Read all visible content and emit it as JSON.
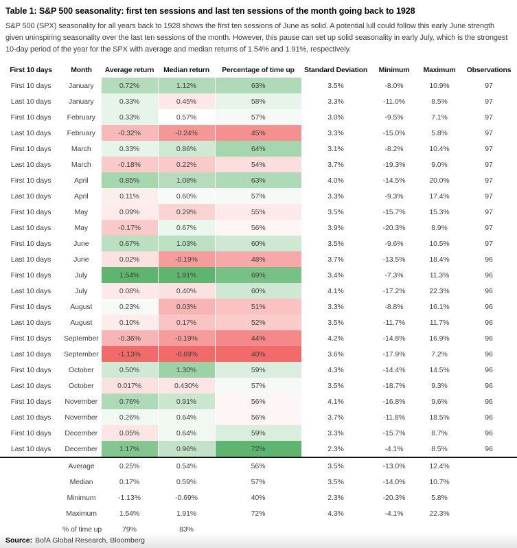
{
  "title": "Table 1: S&P 500 seasonality: first ten sessions and last ten sessions of the month going back to 1928",
  "subtitle": "S&P 500 (SPX) seasonality for all years back to 1928 shows the first ten sessions of June as solid. A potential lull could follow this early June strength given uninspiring seasonality over the last ten sessions of the month. However, this pause can set up solid seasonality in early July, which is the strongest 10-day period of the year for the SPX with average and median returns of 1.54% and 1.91%, respectively.",
  "source": {
    "label": "Source:",
    "text": "BofA Global Research, Bloomberg"
  },
  "chart_data": {
    "type": "table",
    "columns": [
      "First 10 days",
      "Month",
      "Average return",
      "Median return",
      "Percentage of time up",
      "Standard Deviation",
      "Minimum",
      "Maximum",
      "Observations"
    ],
    "rows": [
      [
        "First 10 days",
        "January",
        "0.72%",
        "1.12%",
        "63%",
        "3.5%",
        "-8.0%",
        "10.9%",
        "97"
      ],
      [
        "Last 10 days",
        "January",
        "0.33%",
        "0.45%",
        "58%",
        "3.3%",
        "-11.0%",
        "8.5%",
        "97"
      ],
      [
        "First 10 days",
        "February",
        "0.33%",
        "0.57%",
        "57%",
        "3.0%",
        "-9.5%",
        "7.1%",
        "97"
      ],
      [
        "Last 10 days",
        "February",
        "-0.32%",
        "-0.24%",
        "45%",
        "3.3%",
        "-15.0%",
        "5.8%",
        "97"
      ],
      [
        "First 10 days",
        "March",
        "0.33%",
        "0.86%",
        "64%",
        "3.1%",
        "-8.2%",
        "10.4%",
        "97"
      ],
      [
        "Last 10 days",
        "March",
        "-0.18%",
        "0.22%",
        "54%",
        "3.7%",
        "-19.3%",
        "9.0%",
        "97"
      ],
      [
        "First 10 days",
        "April",
        "0.85%",
        "1.08%",
        "63%",
        "4.0%",
        "-14.5%",
        "20.0%",
        "97"
      ],
      [
        "Last 10 days",
        "April",
        "0.11%",
        "0.60%",
        "57%",
        "3.3%",
        "-9.3%",
        "17.4%",
        "97"
      ],
      [
        "First 10 days",
        "May",
        "0.09%",
        "0.29%",
        "55%",
        "3.5%",
        "-15.7%",
        "15.3%",
        "97"
      ],
      [
        "Last 10 days",
        "May",
        "-0.17%",
        "0.67%",
        "56%",
        "3.9%",
        "-20.3%",
        "8.9%",
        "97"
      ],
      [
        "First 10 days",
        "June",
        "0.67%",
        "1.03%",
        "60%",
        "3.5%",
        "-9.6%",
        "10.5%",
        "97"
      ],
      [
        "Last 10 days",
        "June",
        "0.02%",
        "-0.19%",
        "48%",
        "3.7%",
        "-13.5%",
        "18.4%",
        "96"
      ],
      [
        "First 10 days",
        "July",
        "1.54%",
        "1.91%",
        "69%",
        "3.4%",
        "-7.3%",
        "11.3%",
        "96"
      ],
      [
        "Last 10 days",
        "July",
        "0.08%",
        "0.40%",
        "60%",
        "4.1%",
        "-17.2%",
        "22.3%",
        "96"
      ],
      [
        "First 10 days",
        "August",
        "0.23%",
        "0.03%",
        "51%",
        "3.3%",
        "-8.8%",
        "16.1%",
        "96"
      ],
      [
        "Last 10 days",
        "August",
        "0.10%",
        "0.17%",
        "52%",
        "3.5%",
        "-11.7%",
        "11.7%",
        "96"
      ],
      [
        "First 10 days",
        "September",
        "-0.36%",
        "-0.19%",
        "44%",
        "4.2%",
        "-14.8%",
        "16.9%",
        "96"
      ],
      [
        "Last 10 days",
        "September",
        "-1.13%",
        "-0.69%",
        "40%",
        "3.6%",
        "-17.9%",
        "7.2%",
        "96"
      ],
      [
        "First 10 days",
        "October",
        "0.50%",
        "1.30%",
        "59%",
        "4.3%",
        "-14.4%",
        "14.5%",
        "96"
      ],
      [
        "Last 10 days",
        "October",
        "0.017%",
        "0.430%",
        "57%",
        "3.5%",
        "-18.7%",
        "9.3%",
        "96"
      ],
      [
        "First 10 days",
        "November",
        "0.76%",
        "0.91%",
        "56%",
        "4.1%",
        "-16.8%",
        "9.6%",
        "96"
      ],
      [
        "Last 10 days",
        "November",
        "0.26%",
        "0.64%",
        "56%",
        "3.7%",
        "-11.8%",
        "18.5%",
        "96"
      ],
      [
        "First 10 days",
        "December",
        "0.05%",
        "0.64%",
        "59%",
        "3.3%",
        "-15.7%",
        "8.7%",
        "96"
      ],
      [
        "Last 10 days",
        "December",
        "1.17%",
        "0.96%",
        "72%",
        "2.3%",
        "-4.1%",
        "8.5%",
        "96"
      ]
    ],
    "summary": [
      {
        "label": "Average",
        "values": [
          "0.25%",
          "0.54%",
          "56%",
          "3.5%",
          "-13.0%",
          "12.4%"
        ]
      },
      {
        "label": "Median",
        "values": [
          "0.17%",
          "0.59%",
          "57%",
          "3.5%",
          "-14.0%",
          "10.7%"
        ]
      },
      {
        "label": "Minimum",
        "values": [
          "-1.13%",
          "-0.69%",
          "40%",
          "2.3%",
          "-20.3%",
          "5.8%"
        ]
      },
      {
        "label": "Maximum",
        "values": [
          "1.54%",
          "1.91%",
          "72%",
          "4.3%",
          "-4.1%",
          "22.3%"
        ]
      },
      {
        "label": "% of time up",
        "values": [
          "79%",
          "83%",
          "",
          "",
          "",
          ""
        ]
      }
    ],
    "heatmap": {
      "positive_color": "#5fb56f",
      "negative_color": "#f26b6b",
      "neutral_color": "#ffffff",
      "columns": {
        "2": {
          "min": -1.13,
          "mid": 0.2,
          "max": 1.54
        },
        "3": {
          "min": -0.69,
          "mid": 0.57,
          "max": 1.91
        },
        "4": {
          "min": 40,
          "mid": 56.5,
          "max": 72
        }
      }
    }
  }
}
